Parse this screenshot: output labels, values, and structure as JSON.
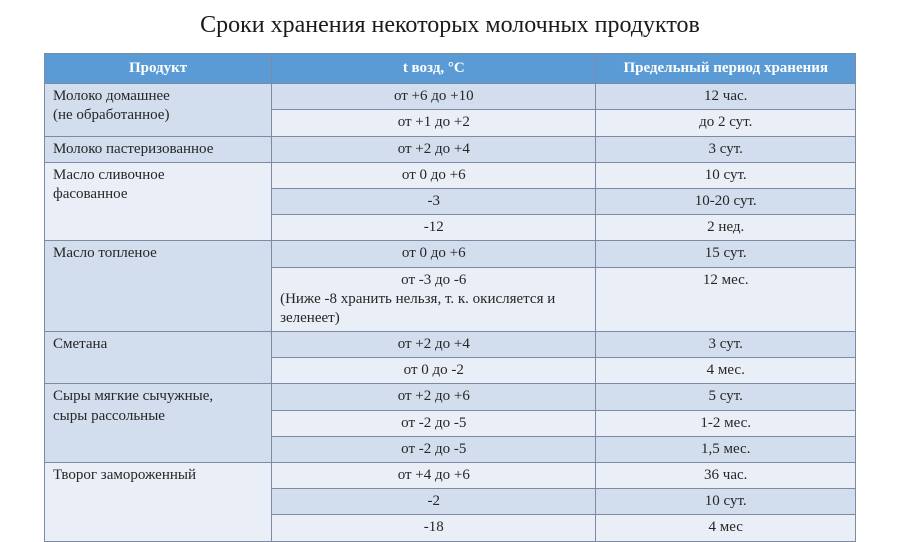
{
  "title": "Сроки хранения некоторых молочных продуктов",
  "colors": {
    "header_bg": "#5b9bd5",
    "header_text": "#ffffff",
    "row_alt1": "#d2deee",
    "row_alt2": "#eaeff7",
    "border": "#7a8ba3",
    "text": "#262626"
  },
  "columns": {
    "product": "Продукт",
    "temp": "t возд, °С",
    "period": "Предельный период хранения"
  },
  "groups": [
    {
      "product_lines": [
        "Молоко домашнее",
        "(не обработанное)"
      ],
      "rows": [
        {
          "temp": "от +6 до +10",
          "period": "12 час."
        },
        {
          "temp": "от +1 до +2",
          "period": "до 2 сут."
        }
      ]
    },
    {
      "product_lines": [
        "Молоко пастеризованное"
      ],
      "rows": [
        {
          "temp": "от +2 до +4",
          "period": "3 сут."
        }
      ]
    },
    {
      "product_lines": [
        "Масло сливочное",
        "фасованное"
      ],
      "rows": [
        {
          "temp": "от 0 до +6",
          "period": "10 сут."
        },
        {
          "temp": "-3",
          "period": "10-20 сут."
        },
        {
          "temp": "-12",
          "period": "2 нед."
        }
      ]
    },
    {
      "product_lines": [
        "Масло топленое"
      ],
      "rows": [
        {
          "temp": "от 0 до +6",
          "period": "15 сут."
        },
        {
          "temp": "от -3 до -6",
          "note": "(Ниже -8 хранить нельзя, т. к. окисляется и зеленеет)",
          "period": "12 мес."
        }
      ]
    },
    {
      "product_lines": [
        "Сметана"
      ],
      "rows": [
        {
          "temp": "от +2 до +4",
          "period": "3 сут."
        },
        {
          "temp": "от 0 до -2",
          "period": "4 мес."
        }
      ]
    },
    {
      "product_lines": [
        "Сыры мягкие сычужные,",
        "сыры рассольные"
      ],
      "rows": [
        {
          "temp": "от +2 до +6",
          "period": "5 сут."
        },
        {
          "temp": "от -2 до -5",
          "period": "1-2 мес."
        },
        {
          "temp": "от -2 до -5",
          "period": "1,5 мес."
        }
      ]
    },
    {
      "product_lines": [
        "Творог замороженный"
      ],
      "rows": [
        {
          "temp": "от +4 до +6",
          "period": "36 час."
        },
        {
          "temp": "-2",
          "period": "10 сут."
        },
        {
          "temp": "-18",
          "period": "4 мес"
        }
      ]
    }
  ],
  "col_widths": {
    "product_pct": 28,
    "temp_pct": 40,
    "period_pct": 32
  }
}
